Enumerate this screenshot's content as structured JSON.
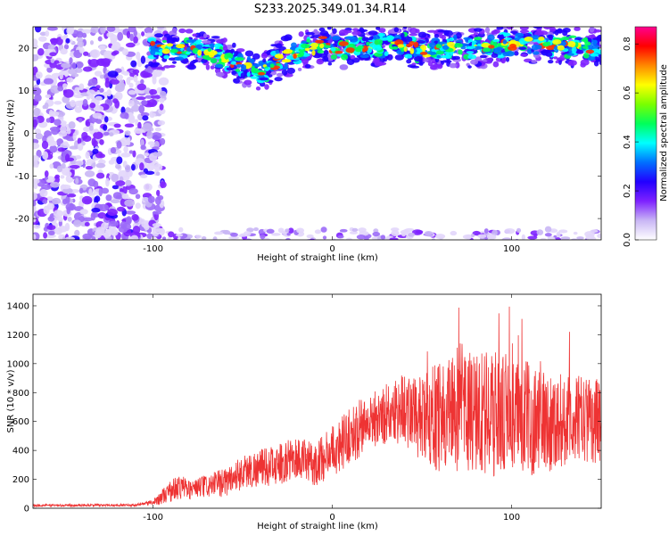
{
  "title": "S233.2025.349.01.34.R14",
  "chart_data": [
    {
      "type": "heatmap",
      "xlabel": "Height of straight line (km)",
      "ylabel": "Frequency (Hz)",
      "xlim": [
        -167,
        150
      ],
      "ylim": [
        -25,
        25
      ],
      "xticks": [
        -100,
        0,
        100
      ],
      "xtick_labels": [
        "-100",
        "0",
        "100"
      ],
      "yticks": [
        20,
        10,
        0,
        -10,
        -20
      ],
      "ytick_labels": [
        "20",
        "10",
        "0",
        "-10",
        "-20"
      ],
      "colorbar": {
        "label": "Normalized spectral amplitude",
        "range": [
          0,
          0.87
        ],
        "ticks": [
          0,
          0.2,
          0.4,
          0.6,
          0.8
        ],
        "tick_labels": [
          "0.0",
          "0.2",
          "0.4",
          "0.6",
          "0.8"
        ],
        "colors": [
          "#ffffff",
          "#c9b6f5",
          "#7e22ff",
          "#2200ff",
          "#0070ff",
          "#00ffff",
          "#00ff5a",
          "#7aff00",
          "#ffff00",
          "#ff8800",
          "#ff0000",
          "#ff0090"
        ]
      },
      "features": {
        "main_echo_band": {
          "x_range": [
            -102,
            150
          ],
          "trace": [
            [
              -100,
              19
            ],
            [
              -90,
              20
            ],
            [
              -70,
              19
            ],
            [
              -50,
              16
            ],
            [
              -40,
              14
            ],
            [
              -30,
              17
            ],
            [
              -20,
              19
            ],
            [
              -10,
              20
            ],
            [
              -5,
              22
            ],
            [
              0,
              20
            ],
            [
              10,
              20
            ],
            [
              20,
              20
            ],
            [
              30,
              21
            ],
            [
              40,
              21
            ],
            [
              50,
              19
            ],
            [
              60,
              20
            ],
            [
              80,
              20
            ],
            [
              100,
              21
            ],
            [
              120,
              21
            ],
            [
              140,
              20
            ],
            [
              150,
              20
            ]
          ],
          "peak_amplitude": 0.87
        },
        "noise_region_x": [
          -167,
          -100
        ],
        "lower_band_y": -24
      }
    },
    {
      "type": "line",
      "xlabel": "Height of straight line (km)",
      "ylabel": "SNR (10 * v/v)",
      "xlim": [
        -167,
        150
      ],
      "ylim": [
        0,
        1480
      ],
      "xticks": [
        -100,
        0,
        100
      ],
      "xtick_labels": [
        "-100",
        "0",
        "100"
      ],
      "yticks": [
        0,
        200,
        400,
        600,
        800,
        1000,
        1200,
        1400
      ],
      "ytick_labels": [
        "0",
        "200",
        "400",
        "600",
        "800",
        "1000",
        "1200",
        "1400"
      ],
      "color": "#ee3333",
      "envelope": {
        "x": [
          -167,
          -110,
          -100,
          -90,
          -85,
          -80,
          -70,
          -60,
          -50,
          -40,
          -30,
          -20,
          -10,
          0,
          10,
          20,
          30,
          40,
          50,
          60,
          70,
          80,
          90,
          100,
          110,
          120,
          130,
          140,
          150
        ],
        "y": [
          20,
          22,
          40,
          120,
          150,
          130,
          150,
          180,
          250,
          280,
          300,
          350,
          300,
          400,
          500,
          600,
          650,
          700,
          600,
          650,
          700,
          650,
          650,
          650,
          620,
          600,
          600,
          620,
          600
        ],
        "amplitude": [
          8,
          8,
          20,
          80,
          90,
          70,
          80,
          100,
          120,
          130,
          140,
          150,
          150,
          180,
          200,
          200,
          220,
          250,
          300,
          400,
          450,
          450,
          450,
          400,
          400,
          350,
          320,
          300,
          300
        ]
      },
      "samples": 1900
    }
  ]
}
